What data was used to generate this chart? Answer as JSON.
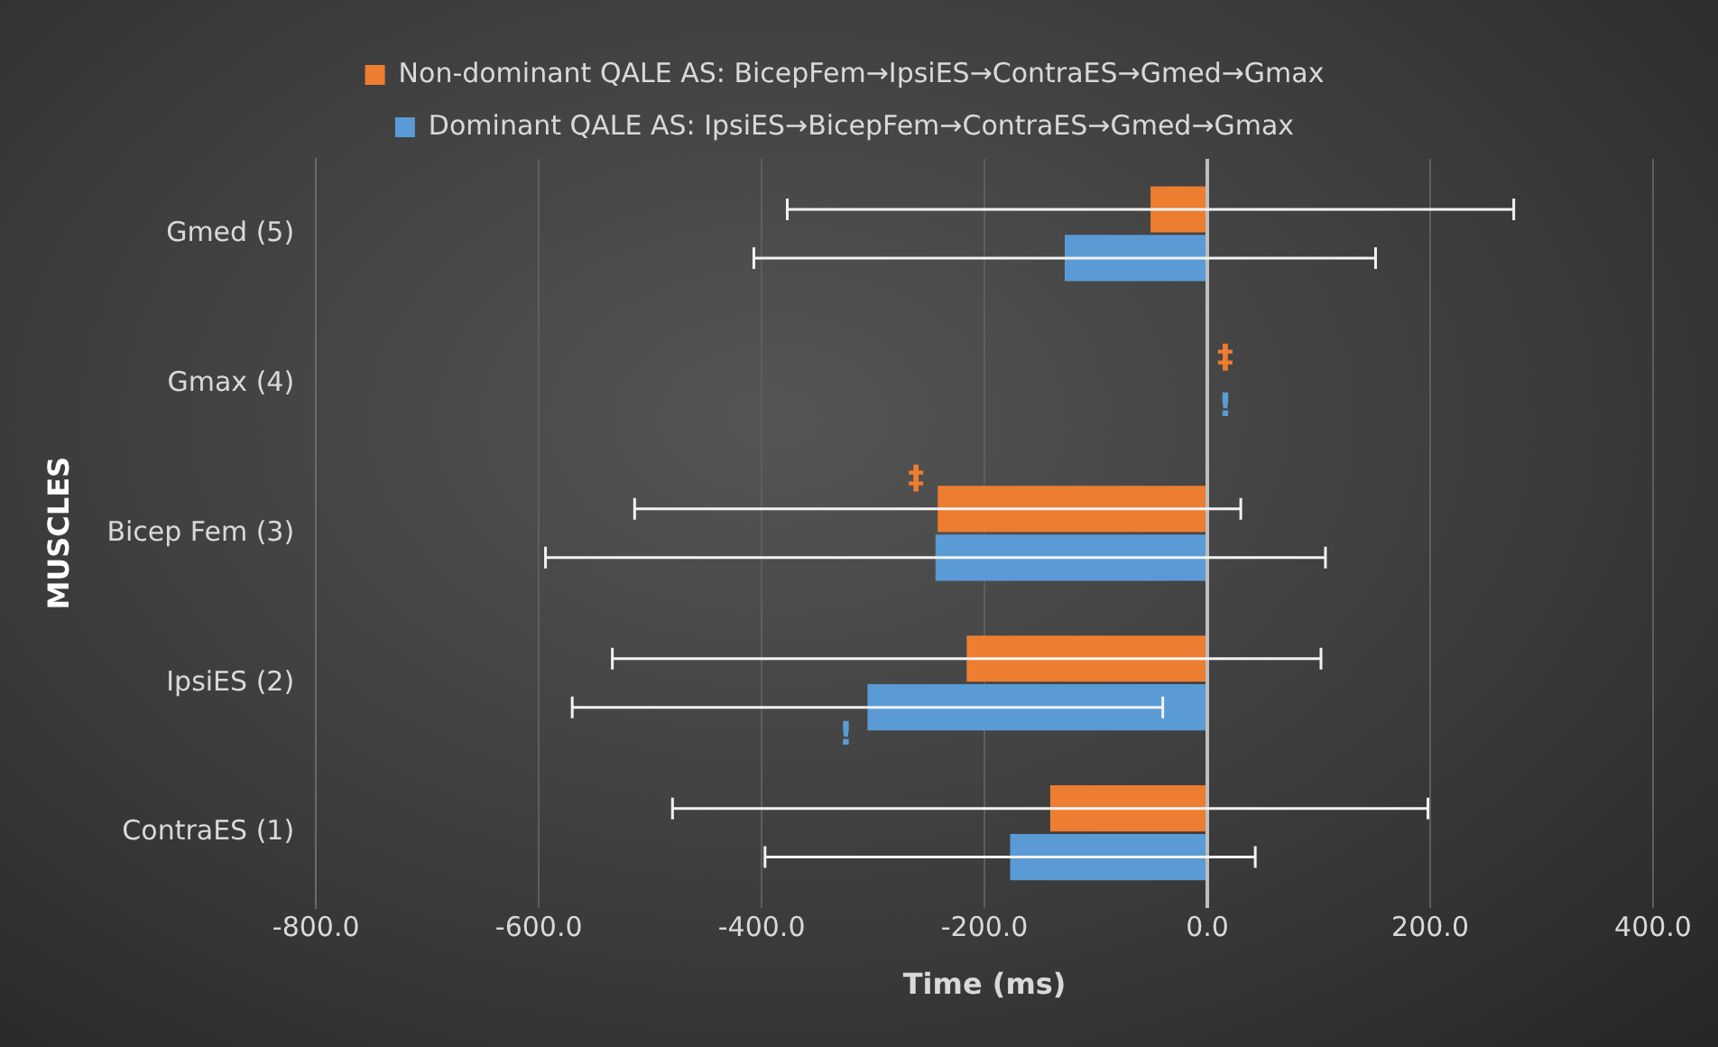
{
  "chart_data": {
    "type": "bar",
    "orientation": "horizontal",
    "xlabel": "Time (ms)",
    "ylabel": "MUSCLES",
    "categories": [
      "Gmed (5)",
      "Gmax (4)",
      "Bicep Fem (3)",
      "IpsiES (2)",
      "ContraES (1)"
    ],
    "series": [
      {
        "name": "Non-dominant QALE AS: BicepFem→IpsiES→ContraES→Gmed→Gmax",
        "color": "#ed7d31",
        "values": [
          -51,
          0,
          -242,
          -216,
          -141
        ],
        "errors": [
          326,
          null,
          272,
          318,
          339
        ]
      },
      {
        "name": "Dominant QALE AS: IpsiES→BicepFem→ContraES→Gmed→Gmax",
        "color": "#5b9bd5",
        "values": [
          -128,
          0,
          -244,
          -305,
          -177
        ],
        "errors": [
          279,
          null,
          350,
          265,
          220
        ]
      }
    ],
    "annotations": [
      {
        "text": "‡",
        "x": 0,
        "y": "Gmax (4)"
      },
      {
        "text": "!",
        "x": 0,
        "y": "Gmax (4)"
      },
      {
        "text": "‡",
        "x": -242,
        "y": "Bicep Fem (3)"
      },
      {
        "text": "!",
        "x": -305,
        "y": "IpsiES (2)"
      }
    ],
    "xlim": [
      -800,
      400
    ],
    "xticks": [
      {
        "value": -800,
        "label": "-800.0"
      },
      {
        "value": -600,
        "label": "-600.0"
      },
      {
        "value": -400,
        "label": "-400.0"
      },
      {
        "value": -200,
        "label": "-200.0"
      },
      {
        "value": 0,
        "label": "0.0"
      },
      {
        "value": 200,
        "label": "200.0"
      },
      {
        "value": 400,
        "label": "400.0"
      }
    ],
    "grid": "x",
    "legend": "top"
  }
}
